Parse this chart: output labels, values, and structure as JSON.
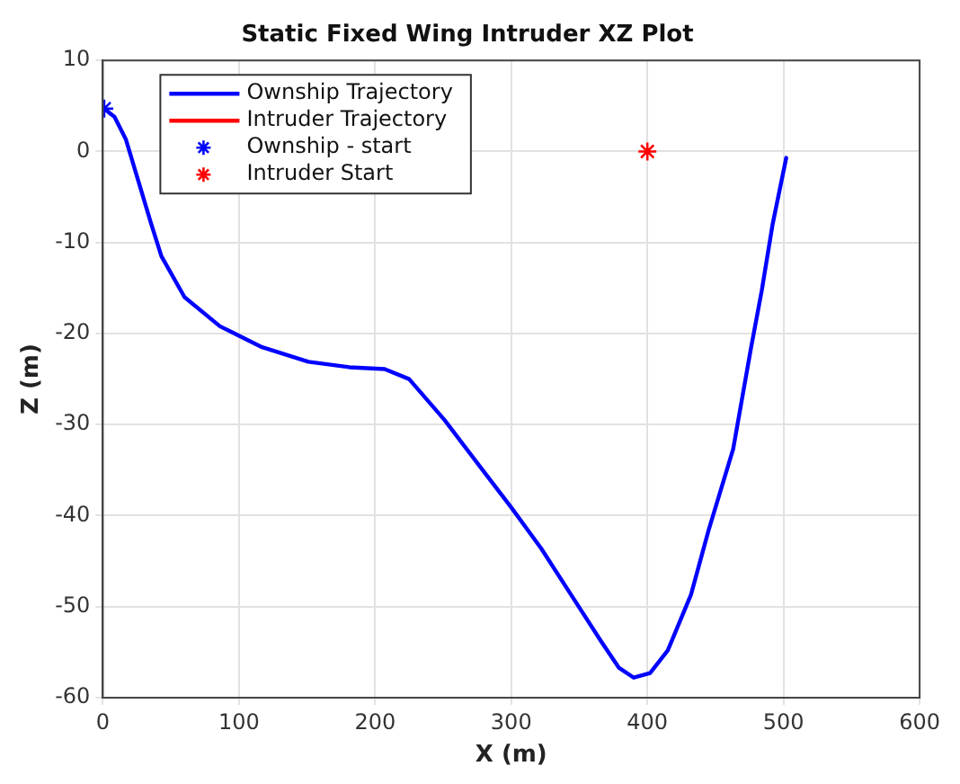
{
  "chart_data": {
    "type": "line",
    "title": "Static Fixed Wing Intruder XZ Plot",
    "xlabel": "X (m)",
    "ylabel": "Z (m)",
    "xlim": [
      0,
      600
    ],
    "xticks": [
      0,
      100,
      200,
      300,
      400,
      500,
      600
    ],
    "ylim": [
      -60,
      10
    ],
    "yticks": [
      -60,
      -50,
      -40,
      -30,
      -20,
      -10,
      0,
      10
    ],
    "grid": true,
    "legend": "top left",
    "line_style": "solid",
    "series": [
      {
        "name": "Ownship Trajectory",
        "color": "#0000ff",
        "marker": "none",
        "x": [
          1,
          8.6,
          17,
          26,
          35,
          43,
          60,
          86,
          117,
          151,
          181,
          207,
          225,
          251,
          277,
          300,
          322,
          344,
          366,
          379,
          390,
          402,
          415,
          432,
          445,
          463,
          476,
          484,
          492,
          502
        ],
        "values": [
          4.7,
          3.8,
          1.3,
          -3.2,
          -7.7,
          -11.5,
          -16,
          -19.2,
          -21.5,
          -23.1,
          -23.7,
          -23.9,
          -25,
          -29.5,
          -34.6,
          -39.1,
          -43.6,
          -48.7,
          -53.8,
          -56.7,
          -57.8,
          -57.3,
          -54.8,
          -48.7,
          -41.6,
          -32.7,
          -21.7,
          -15.3,
          -8,
          -0.7
        ]
      },
      {
        "name": "Intruder Trajectory",
        "color": "#ff0000",
        "marker": "none"
      },
      {
        "name": "Ownship - start",
        "type": "scatter",
        "color": "#0000ff",
        "marker": "cross",
        "x": [
          1
        ],
        "values": [
          4.7
        ]
      },
      {
        "name": "Intruder Start",
        "type": "scatter",
        "color": "#ff0000",
        "marker": "cross",
        "x": [
          400
        ],
        "values": [
          0
        ]
      }
    ]
  }
}
